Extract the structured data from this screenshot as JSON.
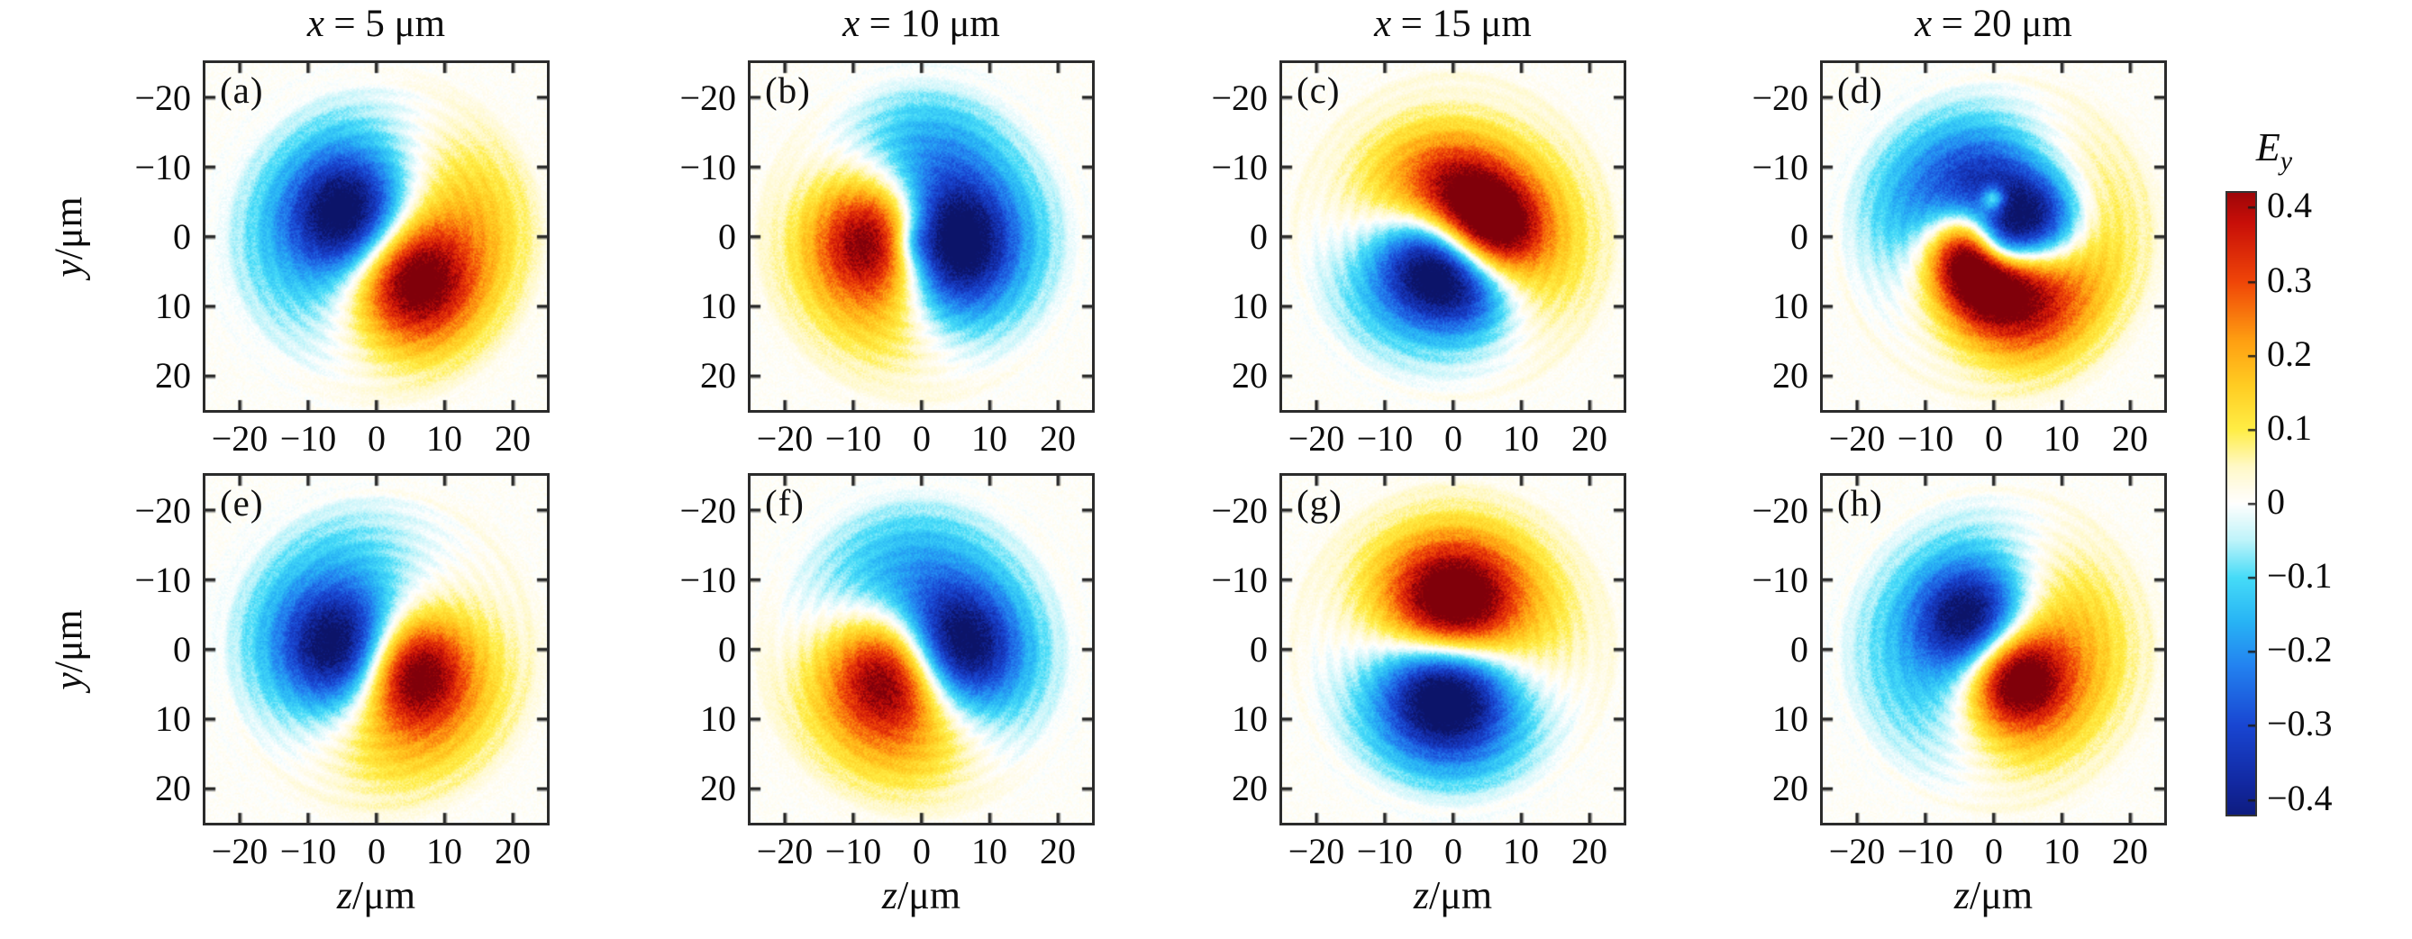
{
  "figure": {
    "col_titles": [
      {
        "var": "x",
        "rest": "= 5 μm"
      },
      {
        "var": "x",
        "rest": "= 10 μm"
      },
      {
        "var": "x",
        "rest": "= 15 μm"
      },
      {
        "var": "x",
        "rest": "= 20 μm"
      }
    ],
    "y_axis": {
      "var": "y",
      "rest": "/μm"
    },
    "z_axis": {
      "var": "z",
      "rest": "/μm"
    },
    "y_tick_labels": [
      "−20",
      "−10",
      "0",
      "10",
      "20"
    ],
    "x_tick_labels": [
      "−20",
      "−10",
      "0",
      "10",
      "20"
    ],
    "colorbar": {
      "label_base": "E",
      "label_sub": "y",
      "tick_labels": [
        "0.4",
        "0.3",
        "0.2",
        "0.1",
        "0",
        "−0.1",
        "−0.2",
        "−0.3",
        "−0.4"
      ],
      "tick_values": [
        0.4,
        0.3,
        0.2,
        0.1,
        0,
        -0.1,
        -0.2,
        -0.3,
        -0.4
      ],
      "vmin": -0.42,
      "vmax": 0.42
    },
    "colors": {
      "border": "#2b2b2b",
      "background": "#ffffff",
      "positive_extreme": "#800008",
      "negative_extreme": "#0c1469",
      "zero": "#ffffff"
    }
  },
  "chart_data": {
    "type": "heatmap",
    "layout": {
      "rows": 2,
      "cols": 4
    },
    "field": "Ey",
    "title": "",
    "x_slices_um": [
      5,
      10,
      15,
      20
    ],
    "xlabel": "z/μm",
    "ylabel": "y/μm",
    "xlim": [
      -25,
      25
    ],
    "ylim_top_to_bottom": [
      -25,
      25
    ],
    "x_ticks": [
      -20,
      -10,
      0,
      10,
      20
    ],
    "y_ticks": [
      -20,
      -10,
      0,
      10,
      20
    ],
    "clim": [
      -0.42,
      0.42
    ],
    "colorbar_label": "Ey",
    "colorbar_ticks": [
      0.4,
      0.3,
      0.2,
      0.1,
      0,
      -0.1,
      -0.2,
      -0.3,
      -0.4
    ],
    "colormap_stops": [
      [
        -0.45,
        12,
        20,
        105
      ],
      [
        -0.38,
        18,
        40,
        160
      ],
      [
        -0.3,
        25,
        70,
        210
      ],
      [
        -0.22,
        35,
        130,
        240
      ],
      [
        -0.16,
        40,
        180,
        245
      ],
      [
        -0.1,
        70,
        220,
        248
      ],
      [
        -0.05,
        190,
        244,
        250
      ],
      [
        -0.02,
        230,
        250,
        252
      ],
      [
        0.0,
        255,
        255,
        255
      ],
      [
        0.02,
        255,
        252,
        235
      ],
      [
        0.05,
        255,
        249,
        200
      ],
      [
        0.1,
        255,
        238,
        70
      ],
      [
        0.16,
        255,
        205,
        35
      ],
      [
        0.22,
        255,
        160,
        18
      ],
      [
        0.3,
        240,
        70,
        8
      ],
      [
        0.38,
        200,
        15,
        8
      ],
      [
        0.45,
        128,
        0,
        10
      ]
    ],
    "panels": [
      {
        "id": "a",
        "label": "(a)",
        "row": 0,
        "col": 0,
        "x_um": 5,
        "seed": 11,
        "phase": 0.4,
        "blobs": [
          [
            -4,
            -3,
            6,
            -0.46
          ],
          [
            -9,
            2,
            11,
            -0.13
          ],
          [
            -3,
            -12,
            8,
            -0.07
          ],
          [
            5,
            6,
            6,
            0.44
          ],
          [
            11,
            1,
            11,
            0.14
          ],
          [
            8,
            14,
            8,
            0.07
          ],
          [
            16,
            -6,
            8,
            0.05
          ]
        ]
      },
      {
        "id": "b",
        "label": "(b)",
        "row": 0,
        "col": 1,
        "x_um": 10,
        "seed": 22,
        "phase": 1.7,
        "blobs": [
          [
            -6,
            0,
            6,
            0.46
          ],
          [
            -10,
            4,
            10,
            0.12
          ],
          [
            -2,
            10,
            8,
            0.09
          ],
          [
            4,
            1,
            6,
            -0.48
          ],
          [
            1,
            -9,
            8,
            -0.17
          ],
          [
            10,
            2,
            9,
            -0.12
          ],
          [
            4,
            9,
            6,
            -0.1
          ],
          [
            -1,
            1,
            2,
            -0.1
          ],
          [
            0,
            -15,
            9,
            -0.05
          ]
        ]
      },
      {
        "id": "c",
        "label": "(c)",
        "row": 0,
        "col": 2,
        "x_um": 15,
        "seed": 33,
        "phase": 3.0,
        "blobs": [
          [
            -3,
            4,
            5.5,
            -0.46
          ],
          [
            3,
            8,
            5,
            -0.22
          ],
          [
            -9,
            7,
            9,
            -0.12
          ],
          [
            6,
            -1,
            5,
            0.44
          ],
          [
            1,
            -6,
            5.5,
            0.3
          ],
          [
            -5,
            -8,
            7,
            0.14
          ],
          [
            11,
            -5,
            9,
            0.1
          ],
          [
            15,
            6,
            8,
            0.07
          ],
          [
            -12,
            -3,
            8,
            0.05
          ]
        ]
      },
      {
        "id": "d",
        "label": "(d)",
        "row": 0,
        "col": 3,
        "x_um": 20,
        "seed": 44,
        "phase": 4.2,
        "blobs": [
          [
            6,
            -2,
            5,
            -0.5
          ],
          [
            1,
            1,
            3,
            -0.28
          ],
          [
            -1,
            -8,
            6,
            -0.24
          ],
          [
            -8,
            -3,
            7,
            -0.16
          ],
          [
            -11,
            -10,
            10,
            -0.07
          ],
          [
            -4,
            2,
            4.5,
            0.46
          ],
          [
            -1,
            7,
            5,
            0.34
          ],
          [
            5,
            9,
            6,
            0.22
          ],
          [
            10,
            5,
            8,
            0.12
          ],
          [
            0,
            -5.5,
            1.3,
            0.28
          ],
          [
            15,
            -6,
            9,
            0.08
          ],
          [
            8,
            15,
            9,
            0.07
          ]
        ]
      },
      {
        "id": "e",
        "label": "(e)",
        "row": 1,
        "col": 0,
        "x_um": 5,
        "seed": 55,
        "phase": 5.1,
        "blobs": [
          [
            -5,
            0,
            6,
            -0.46
          ],
          [
            -10,
            -3,
            11,
            -0.11
          ],
          [
            -3,
            -12,
            8,
            -0.06
          ],
          [
            5,
            3,
            5.5,
            0.44
          ],
          [
            10,
            7,
            10,
            0.14
          ],
          [
            2,
            13,
            8,
            0.08
          ]
        ]
      },
      {
        "id": "f",
        "label": "(f)",
        "row": 1,
        "col": 1,
        "x_um": 10,
        "seed": 66,
        "phase": 0.9,
        "blobs": [
          [
            -4,
            3,
            6,
            0.46
          ],
          [
            -8,
            8,
            10,
            0.14
          ],
          [
            1,
            12,
            8,
            0.1
          ],
          [
            5,
            0,
            6,
            -0.47
          ],
          [
            0,
            -9,
            9,
            -0.16
          ],
          [
            10,
            5,
            9,
            -0.1
          ],
          [
            -8,
            -8,
            10,
            -0.06
          ]
        ]
      },
      {
        "id": "g",
        "label": "(g)",
        "row": 1,
        "col": 2,
        "x_um": 15,
        "seed": 77,
        "phase": 2.3,
        "blobs": [
          [
            0,
            -6,
            6,
            0.46
          ],
          [
            -6,
            -10,
            8,
            0.12
          ],
          [
            6,
            -10,
            8,
            0.12
          ],
          [
            12,
            -2,
            8,
            0.06
          ],
          [
            -1,
            6,
            6,
            -0.46
          ],
          [
            4,
            11,
            8,
            -0.13
          ],
          [
            -7,
            9,
            8,
            -0.1
          ]
        ]
      },
      {
        "id": "h",
        "label": "(h)",
        "row": 1,
        "col": 3,
        "x_um": 20,
        "seed": 88,
        "phase": 3.6,
        "blobs": [
          [
            -3,
            -4,
            5.5,
            -0.44
          ],
          [
            -9,
            0,
            10,
            -0.12
          ],
          [
            -1,
            -11,
            8,
            -0.07
          ],
          [
            -6,
            10,
            8,
            -0.06
          ],
          [
            3,
            4,
            5,
            0.46
          ],
          [
            9,
            2,
            9,
            0.16
          ],
          [
            3,
            10,
            8,
            0.1
          ],
          [
            10,
            -8,
            8,
            0.06
          ]
        ]
      }
    ]
  }
}
